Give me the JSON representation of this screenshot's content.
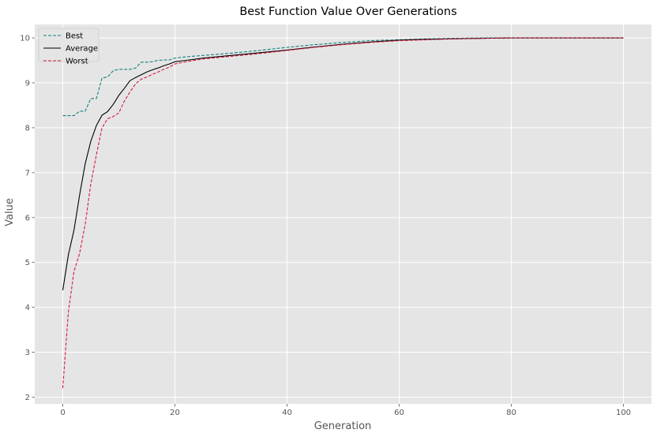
{
  "chart_data": {
    "type": "line",
    "title": "Best Function Value Over Generations",
    "xlabel": "Generation",
    "ylabel": "Value",
    "xlim": [
      -5,
      105
    ],
    "ylim": [
      1.85,
      10.3
    ],
    "xticks": [
      0,
      20,
      40,
      60,
      80,
      100
    ],
    "yticks": [
      2,
      3,
      4,
      5,
      6,
      7,
      8,
      9,
      10
    ],
    "grid": true,
    "legend_position": "top-left",
    "background": "#e5e5e5",
    "series": [
      {
        "name": "Best",
        "color": "#13807f",
        "dash": "dashed",
        "points": [
          [
            0,
            8.27
          ],
          [
            1,
            8.27
          ],
          [
            2,
            8.27
          ],
          [
            3,
            8.37
          ],
          [
            4,
            8.37
          ],
          [
            5,
            8.65
          ],
          [
            6,
            8.65
          ],
          [
            7,
            9.11
          ],
          [
            8,
            9.13
          ],
          [
            9,
            9.27
          ],
          [
            10,
            9.3
          ],
          [
            11,
            9.3
          ],
          [
            12,
            9.3
          ],
          [
            13,
            9.33
          ],
          [
            14,
            9.46
          ],
          [
            15,
            9.46
          ],
          [
            16,
            9.47
          ],
          [
            17,
            9.5
          ],
          [
            18,
            9.51
          ],
          [
            19,
            9.51
          ],
          [
            20,
            9.55
          ],
          [
            22,
            9.58
          ],
          [
            25,
            9.61
          ],
          [
            30,
            9.66
          ],
          [
            35,
            9.72
          ],
          [
            40,
            9.79
          ],
          [
            45,
            9.85
          ],
          [
            50,
            9.9
          ],
          [
            55,
            9.94
          ],
          [
            60,
            9.96
          ],
          [
            65,
            9.98
          ],
          [
            70,
            9.99
          ],
          [
            75,
            10.0
          ],
          [
            80,
            10.0
          ],
          [
            90,
            10.0
          ],
          [
            100,
            10.0
          ]
        ]
      },
      {
        "name": "Average",
        "color": "#000000",
        "dash": "solid",
        "points": [
          [
            0,
            4.38
          ],
          [
            1,
            5.17
          ],
          [
            2,
            5.72
          ],
          [
            3,
            6.5
          ],
          [
            4,
            7.2
          ],
          [
            5,
            7.7
          ],
          [
            6,
            8.05
          ],
          [
            7,
            8.28
          ],
          [
            8,
            8.36
          ],
          [
            9,
            8.52
          ],
          [
            10,
            8.72
          ],
          [
            11,
            8.88
          ],
          [
            12,
            9.05
          ],
          [
            13,
            9.12
          ],
          [
            14,
            9.18
          ],
          [
            15,
            9.24
          ],
          [
            16,
            9.29
          ],
          [
            17,
            9.33
          ],
          [
            18,
            9.38
          ],
          [
            19,
            9.42
          ],
          [
            20,
            9.47
          ],
          [
            22,
            9.5
          ],
          [
            25,
            9.55
          ],
          [
            30,
            9.61
          ],
          [
            35,
            9.67
          ],
          [
            40,
            9.73
          ],
          [
            45,
            9.8
          ],
          [
            50,
            9.86
          ],
          [
            55,
            9.91
          ],
          [
            60,
            9.95
          ],
          [
            65,
            9.97
          ],
          [
            70,
            9.98
          ],
          [
            75,
            9.99
          ],
          [
            80,
            10.0
          ],
          [
            90,
            10.0
          ],
          [
            100,
            10.0
          ]
        ]
      },
      {
        "name": "Worst",
        "color": "#d81a40",
        "dash": "dashed",
        "points": [
          [
            0,
            2.2
          ],
          [
            1,
            3.9
          ],
          [
            2,
            4.8
          ],
          [
            3,
            5.2
          ],
          [
            4,
            5.85
          ],
          [
            5,
            6.75
          ],
          [
            6,
            7.4
          ],
          [
            7,
            8.0
          ],
          [
            8,
            8.2
          ],
          [
            9,
            8.25
          ],
          [
            10,
            8.33
          ],
          [
            11,
            8.6
          ],
          [
            12,
            8.8
          ],
          [
            13,
            8.98
          ],
          [
            14,
            9.08
          ],
          [
            15,
            9.13
          ],
          [
            16,
            9.19
          ],
          [
            17,
            9.24
          ],
          [
            18,
            9.3
          ],
          [
            19,
            9.35
          ],
          [
            20,
            9.42
          ],
          [
            22,
            9.47
          ],
          [
            25,
            9.53
          ],
          [
            30,
            9.59
          ],
          [
            35,
            9.65
          ],
          [
            40,
            9.72
          ],
          [
            45,
            9.79
          ],
          [
            50,
            9.85
          ],
          [
            55,
            9.9
          ],
          [
            60,
            9.94
          ],
          [
            65,
            9.96
          ],
          [
            70,
            9.98
          ],
          [
            75,
            9.99
          ],
          [
            80,
            10.0
          ],
          [
            90,
            10.0
          ],
          [
            100,
            10.0
          ]
        ]
      }
    ]
  }
}
